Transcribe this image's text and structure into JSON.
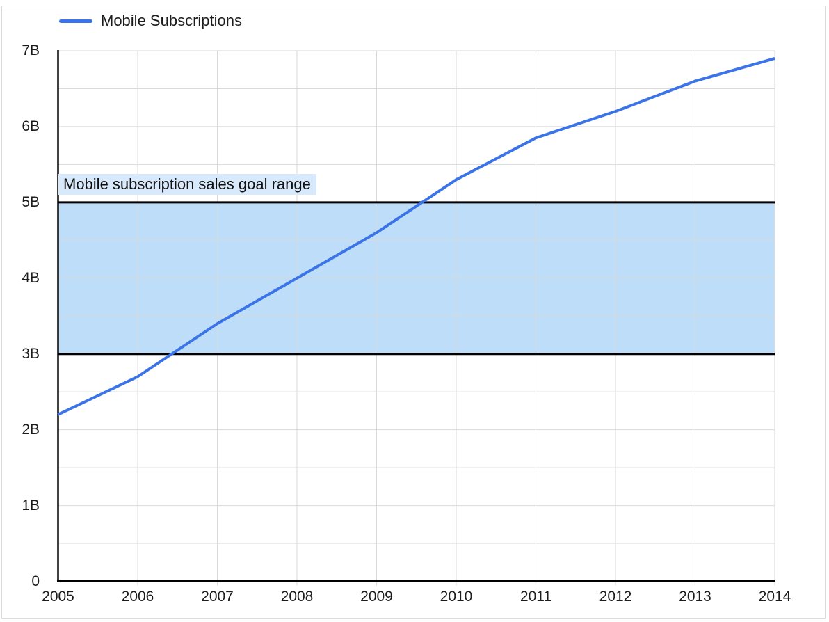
{
  "legend": {
    "label": "Mobile Subscriptions"
  },
  "colors": {
    "line": "#3b74e8",
    "band_fill": "#beddf8",
    "band_border": "#000000",
    "band_label_bg": "#d8e9fc",
    "grid": "#d9d9d9",
    "axis": "#000000",
    "text": "#1c1c1c",
    "frame_border": "#dbdbdb",
    "background": "#ffffff"
  },
  "chart_data": {
    "type": "line",
    "title": "",
    "xlabel": "",
    "ylabel": "",
    "x": [
      2005,
      2006,
      2007,
      2008,
      2009,
      2010,
      2011,
      2012,
      2013,
      2014
    ],
    "series": [
      {
        "name": "Mobile Subscriptions",
        "values": [
          2.2,
          2.7,
          3.4,
          4.0,
          4.6,
          5.3,
          5.85,
          6.2,
          6.6,
          6.9
        ]
      }
    ],
    "units": "billions",
    "ylim": [
      0,
      7
    ],
    "y_tick_labels": [
      "0",
      "1B",
      "2B",
      "3B",
      "4B",
      "5B",
      "6B",
      "7B"
    ],
    "minor_gridline_step": 0.5,
    "grid": true,
    "legend_position": "top-left",
    "annotation_band": {
      "label": "Mobile subscription sales goal range",
      "y_from": 3,
      "y_to": 5
    }
  }
}
